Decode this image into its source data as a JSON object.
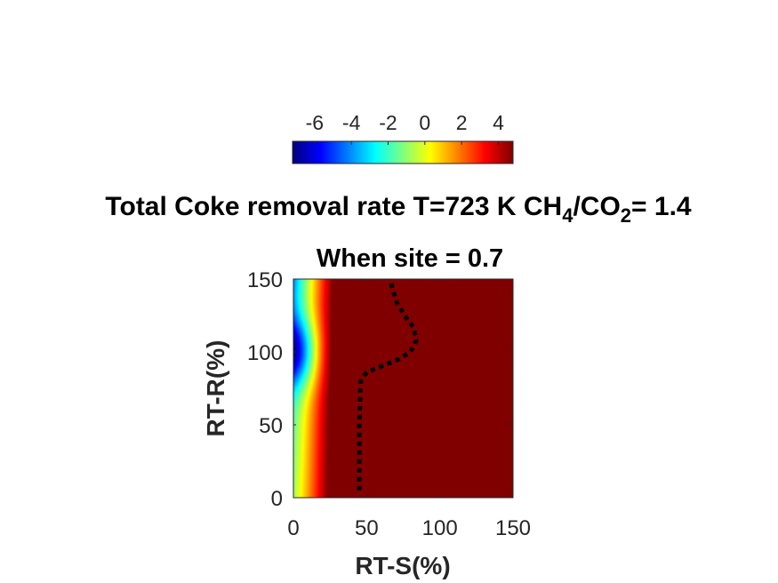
{
  "chart_data": {
    "type": "heatmap",
    "title": {
      "main": "Total Coke removal rate T=723 K CH",
      "sub1": "4",
      "mid": "/CO",
      "sub2": "2",
      "end": "= 1.4"
    },
    "subtitle": "When site = 0.7",
    "xlabel": "RT-S(%)",
    "ylabel": "RT-R(%)",
    "xlim": [
      0,
      150
    ],
    "ylim": [
      0,
      150
    ],
    "xticks": [
      0,
      50,
      100,
      150
    ],
    "yticks": [
      0,
      50,
      100,
      150
    ],
    "colormap": "jet",
    "colorbar": {
      "location": "top",
      "range": [
        -7.2,
        4.8
      ],
      "ticks": [
        -6,
        -4,
        -2,
        0,
        2,
        4
      ]
    },
    "grid": false,
    "contour_zero": {
      "style": "dotted",
      "color": "#000000",
      "x": [
        45,
        45,
        46,
        50,
        60,
        72,
        80,
        84,
        82,
        76,
        71,
        68,
        66
      ],
      "y": [
        5,
        50,
        80,
        86,
        90,
        95,
        100,
        108,
        117,
        125,
        133,
        142,
        150
      ]
    },
    "field": {
      "description_values": "value(x,y) in colorbar units",
      "minimum": {
        "x": 0,
        "y": 100,
        "value": -7.2
      },
      "maximum": 4.8
    }
  }
}
